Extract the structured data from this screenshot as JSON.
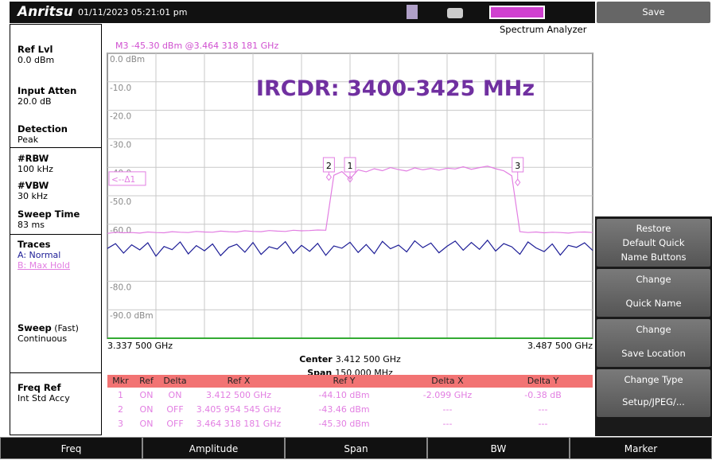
{
  "header": {
    "brand": "Anritsu",
    "datetime": "01/11/2023 05:21:01 pm",
    "mode": "Spectrum Analyzer"
  },
  "left_panel": {
    "ref_lvl": {
      "label": "Ref Lvl",
      "value": "0.0 dBm"
    },
    "input_atten": {
      "label": "Input Atten",
      "value": "20.0 dB"
    },
    "detection": {
      "label": "Detection",
      "value": "Peak"
    },
    "rbw": {
      "label": "#RBW",
      "value": "100 kHz"
    },
    "vbw": {
      "label": "#VBW",
      "value": "30 kHz"
    },
    "sweep_time": {
      "label": "Sweep Time",
      "value": "83 ms"
    },
    "traces": {
      "label": "Traces",
      "a": "A: Normal",
      "b": "B: Max Hold"
    },
    "sweep": {
      "label": "Sweep",
      "suffix": "(Fast)",
      "value": "Continuous"
    },
    "freq_ref": {
      "label": "Freq Ref",
      "value": "Int Std Accy"
    }
  },
  "chart_data": {
    "type": "line",
    "marker_readout": "M3 -45.30 dBm @3.464 318 181 GHz",
    "annotation": "IRCDR: 3400-3425 MHz",
    "center_label": "Center",
    "center": "3.412 500 GHz",
    "span_label": "Span",
    "span": "150.000 MHz",
    "xlim": [
      3.3375,
      3.4875
    ],
    "xticks": [
      {
        "value": 3.3375,
        "label": "3.337 500 GHz"
      },
      {
        "value": 3.4875,
        "label": "3.487 500 GHz"
      }
    ],
    "ylim": [
      -100,
      0
    ],
    "yticks": [
      {
        "value": 0,
        "label": "0.0 dBm"
      },
      {
        "value": -10,
        "label": "-10.0"
      },
      {
        "value": -20,
        "label": "-20.0"
      },
      {
        "value": -30,
        "label": "-30.0"
      },
      {
        "value": -40,
        "label": "-40.0"
      },
      {
        "value": -50,
        "label": "-50.0"
      },
      {
        "value": -60,
        "label": "-60.0"
      },
      {
        "value": -80,
        "label": "-80.0"
      },
      {
        "value": -90,
        "label": "-90.0 dBm"
      }
    ],
    "grid": true,
    "x": [
      3.3375,
      3.34,
      3.3425,
      3.345,
      3.3475,
      3.35,
      3.3525,
      3.355,
      3.3575,
      3.36,
      3.3625,
      3.365,
      3.3675,
      3.37,
      3.3725,
      3.375,
      3.3775,
      3.38,
      3.3825,
      3.385,
      3.3875,
      3.39,
      3.3925,
      3.395,
      3.3975,
      3.4,
      3.4025,
      3.405,
      3.4075,
      3.41,
      3.4125,
      3.415,
      3.4175,
      3.42,
      3.4225,
      3.425,
      3.4275,
      3.43,
      3.4325,
      3.435,
      3.4375,
      3.44,
      3.4425,
      3.445,
      3.4475,
      3.45,
      3.4525,
      3.455,
      3.4575,
      3.46,
      3.4625,
      3.465,
      3.4675,
      3.47,
      3.4725,
      3.475,
      3.4775,
      3.48,
      3.4825,
      3.485,
      3.4875
    ],
    "series": [
      {
        "color": "#e27ee2",
        "values": [
          -63.2,
          -62.8,
          -63.0,
          -62.9,
          -63.1,
          -62.7,
          -62.9,
          -63.0,
          -62.6,
          -62.8,
          -62.9,
          -62.5,
          -62.7,
          -62.8,
          -62.4,
          -62.6,
          -62.7,
          -62.3,
          -62.5,
          -62.6,
          -62.2,
          -62.4,
          -62.5,
          -62.1,
          -62.3,
          -62.2,
          -62.0,
          -62.1,
          -42.8,
          -41.5,
          -44.1,
          -40.9,
          -41.6,
          -40.5,
          -41.2,
          -40.1,
          -40.8,
          -41.3,
          -40.2,
          -40.9,
          -40.4,
          -41.0,
          -40.3,
          -40.6,
          -39.8,
          -40.7,
          -40.1,
          -39.6,
          -40.5,
          -41.2,
          -43.0,
          -62.6,
          -62.9,
          -62.7,
          -63.0,
          -62.8,
          -62.9,
          -63.1,
          -62.8,
          -62.7,
          -62.9
        ]
      },
      {
        "color": "#1c1c96",
        "values": [
          -68.5,
          -66.8,
          -70.1,
          -67.2,
          -69.0,
          -66.5,
          -71.2,
          -67.8,
          -68.9,
          -66.2,
          -70.4,
          -67.5,
          -69.3,
          -66.9,
          -71.0,
          -68.1,
          -67.0,
          -69.8,
          -66.4,
          -70.6,
          -67.9,
          -68.7,
          -66.1,
          -70.2,
          -67.4,
          -69.5,
          -66.7,
          -70.9,
          -67.6,
          -68.4,
          -66.3,
          -69.9,
          -67.1,
          -70.3,
          -66.0,
          -68.6,
          -67.3,
          -69.7,
          -65.8,
          -68.2,
          -66.6,
          -70.0,
          -67.7,
          -65.9,
          -69.1,
          -66.4,
          -68.8,
          -65.6,
          -69.4,
          -66.8,
          -67.9,
          -70.5,
          -66.2,
          -68.3,
          -69.6,
          -66.9,
          -70.8,
          -67.4,
          -68.1,
          -66.5,
          -69.2
        ]
      }
    ],
    "markers": [
      {
        "label": "1",
        "x": 3.4125,
        "y": -44.1
      },
      {
        "label": "2",
        "x": 3.405954545,
        "y": -43.46
      },
      {
        "label": "3",
        "x": 3.464318181,
        "y": -45.3
      }
    ],
    "delta_ref": {
      "label": "<--Δ1",
      "y": -44.1
    }
  },
  "marker_table": {
    "columns": [
      "Mkr",
      "Ref",
      "Delta",
      "Ref X",
      "Ref Y",
      "Delta X",
      "Delta Y"
    ],
    "rows": [
      [
        "1",
        "ON",
        "ON",
        "3.412 500 GHz",
        "-44.10 dBm",
        "-2.099 GHz",
        "-0.38 dB"
      ],
      [
        "2",
        "ON",
        "OFF",
        "3.405 954 545 GHz",
        "-43.46 dBm",
        "---",
        "---"
      ],
      [
        "3",
        "ON",
        "OFF",
        "3.464 318 181 GHz",
        "-45.30 dBm",
        "---",
        "---"
      ]
    ]
  },
  "softkeys": {
    "save": "Save",
    "restore": [
      "Restore",
      "Default Quick",
      "Name Buttons"
    ],
    "quick_name": [
      "Change",
      "Quick Name"
    ],
    "save_location": [
      "Change",
      "Save Location"
    ],
    "change_type": [
      "Change Type",
      "Setup/JPEG/..."
    ]
  },
  "bottom_buttons": [
    "Freq",
    "Amplitude",
    "Span",
    "BW",
    "Marker"
  ]
}
